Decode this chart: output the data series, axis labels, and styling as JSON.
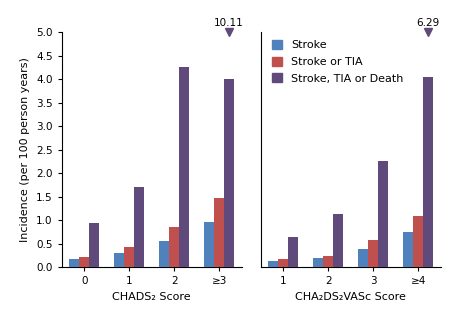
{
  "chads2_categories": [
    "0",
    "1",
    "2",
    "≥3"
  ],
  "chads2_stroke": [
    0.17,
    0.3,
    0.55,
    0.96
  ],
  "chads2_stroke_tia": [
    0.22,
    0.43,
    0.86,
    1.48
  ],
  "chads2_stroke_tia_death": [
    0.95,
    1.7,
    4.25,
    4.0
  ],
  "chads2_overflow_value": 10.11,
  "chads2_overflow_bar_index": 3,
  "cha2ds2_categories": [
    "1",
    "2",
    "3",
    "≥4"
  ],
  "cha2ds2_stroke": [
    0.13,
    0.2,
    0.38,
    0.74
  ],
  "cha2ds2_stroke_tia": [
    0.17,
    0.24,
    0.57,
    1.1
  ],
  "cha2ds2_stroke_tia_death": [
    0.65,
    1.13,
    2.25,
    4.05
  ],
  "cha2ds2_overflow_value": 6.29,
  "cha2ds2_overflow_bar_index": 3,
  "color_stroke": "#4F81BD",
  "color_stroke_tia": "#C0504D",
  "color_stroke_tia_death": "#604A7B",
  "ylabel": "Incidence (per 100 person years)",
  "xlabel1": "CHADS₂ Score",
  "xlabel2": "CHA₂DS₂VASc Score",
  "ylim": [
    0.0,
    5.0
  ],
  "yticks": [
    0.0,
    0.5,
    1.0,
    1.5,
    2.0,
    2.5,
    3.0,
    3.5,
    4.0,
    4.5,
    5.0
  ],
  "legend_labels": [
    "Stroke",
    "Stroke or TIA",
    "Stroke, TIA or Death"
  ],
  "bar_width": 0.22,
  "fontsize_tick": 7.5,
  "fontsize_label": 8,
  "fontsize_legend": 8,
  "fontsize_annotation": 7.5
}
